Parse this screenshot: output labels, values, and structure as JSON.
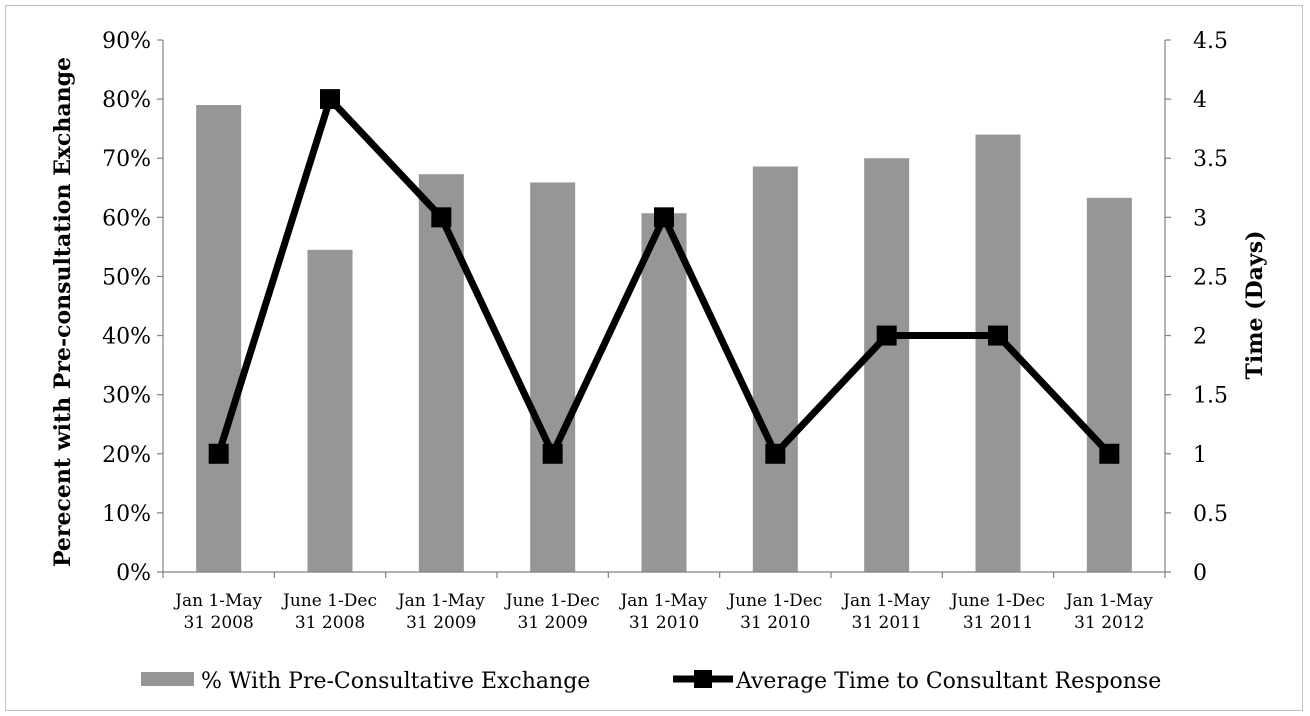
{
  "chart_data": {
    "type": "bar",
    "categories": [
      [
        "Jan 1-May",
        "31 2008"
      ],
      [
        "June 1-Dec",
        "31 2008"
      ],
      [
        "Jan 1-May",
        "31 2009"
      ],
      [
        "June 1-Dec",
        "31 2009"
      ],
      [
        "Jan 1-May",
        "31 2010"
      ],
      [
        "June 1-Dec",
        "31 2010"
      ],
      [
        "Jan 1-May",
        "31 2011"
      ],
      [
        "June 1-Dec",
        "31 2011"
      ],
      [
        "Jan 1-May",
        "31 2012"
      ]
    ],
    "series": [
      {
        "name": "% With Pre-Consultative Exchange",
        "type": "bar",
        "axis": "left",
        "color": "#969696",
        "values": [
          0.79,
          0.545,
          0.673,
          0.659,
          0.607,
          0.686,
          0.7,
          0.74,
          0.633
        ]
      },
      {
        "name": "Average Time to Consultant Response",
        "type": "line",
        "axis": "right",
        "color": "#000000",
        "marker": "square",
        "values": [
          1,
          4,
          3,
          1,
          3,
          1,
          2,
          2,
          1
        ]
      }
    ],
    "ylabel": "Perecent with Pre-consultation Exchange",
    "y2label": "Time (Days)",
    "ylim": [
      0,
      0.9
    ],
    "y2lim": [
      0,
      4.5
    ],
    "yticks": [
      "0%",
      "10%",
      "20%",
      "30%",
      "40%",
      "50%",
      "60%",
      "70%",
      "80%",
      "90%"
    ],
    "y2ticks": [
      "0",
      "0.5",
      "1",
      "1.5",
      "2",
      "2.5",
      "3",
      "3.5",
      "4",
      "4.5"
    ],
    "grid": false,
    "legend_position": "bottom"
  }
}
